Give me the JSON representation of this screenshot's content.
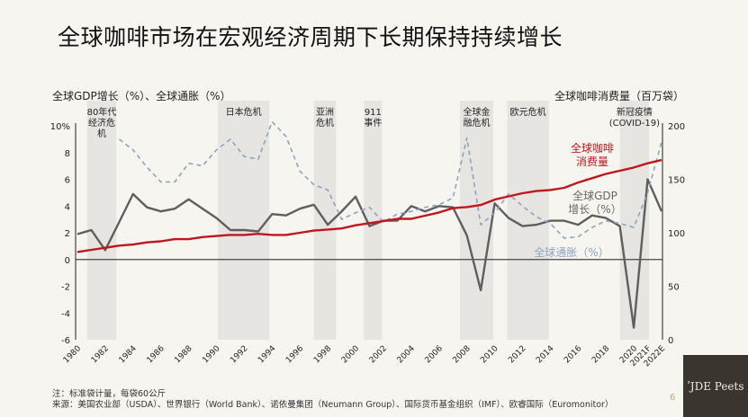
{
  "title": "全球咖啡市场在宏观经济周期下长期保持持续增长",
  "chart_data": {
    "type": "line",
    "title": "全球咖啡市场在宏观经济周期下长期保持持续增长",
    "left_axis_label": "全球GDP增长（%）、全球通胀（%）",
    "right_axis_label": "全球咖啡消费量（百万袋）",
    "left_ylim": [
      -6,
      10
    ],
    "right_ylim": [
      0,
      200
    ],
    "left_ticks": [
      "-6",
      "-4",
      "-2",
      "0",
      "2",
      "4",
      "6",
      "8",
      "10%"
    ],
    "left_tick_values": [
      -6,
      -4,
      -2,
      0,
      2,
      4,
      6,
      8,
      10
    ],
    "right_ticks": [
      "0",
      "50",
      "100",
      "150",
      "200"
    ],
    "right_tick_values": [
      0,
      50,
      100,
      150,
      200
    ],
    "x_ticks": [
      "1980",
      "1982",
      "1984",
      "1986",
      "1988",
      "1990",
      "1992",
      "1994",
      "1996",
      "1998",
      "2000",
      "2002",
      "2004",
      "2006",
      "2008",
      "2010",
      "2012",
      "2014",
      "2016",
      "2018",
      "2020",
      "2021F",
      "2022E"
    ],
    "x_tick_values": [
      1980,
      1982,
      1984,
      1986,
      1988,
      1990,
      1992,
      1994,
      1996,
      1998,
      2000,
      2002,
      2004,
      2006,
      2008,
      2010,
      2012,
      2014,
      2016,
      2018,
      2020,
      2021,
      2022
    ],
    "grid": false,
    "years": [
      1980,
      1981,
      1982,
      1983,
      1984,
      1985,
      1986,
      1987,
      1988,
      1989,
      1990,
      1991,
      1992,
      1993,
      1994,
      1995,
      1996,
      1997,
      1998,
      1999,
      2000,
      2001,
      2002,
      2003,
      2004,
      2005,
      2006,
      2007,
      2008,
      2009,
      2010,
      2011,
      2012,
      2013,
      2014,
      2015,
      2016,
      2017,
      2018,
      2019,
      2020,
      2021,
      2022
    ],
    "series": [
      {
        "name": "全球GDP增长（%）",
        "axis": "left",
        "color": "#5f5f5f",
        "style": "solid",
        "values": [
          1.9,
          2.2,
          0.7,
          2.8,
          4.9,
          3.9,
          3.6,
          3.8,
          4.5,
          3.8,
          3.1,
          2.2,
          2.2,
          2.1,
          3.4,
          3.3,
          3.8,
          4.1,
          2.6,
          3.6,
          4.7,
          2.5,
          2.9,
          2.9,
          4.0,
          3.6,
          4.0,
          3.9,
          1.8,
          -2.3,
          4.2,
          3.1,
          2.5,
          2.6,
          2.9,
          2.9,
          2.6,
          3.3,
          3.1,
          2.5,
          -5.1,
          6.0,
          3.6
        ]
      },
      {
        "name": "全球通胀（%）",
        "axis": "left",
        "color": "#8fa3bd",
        "style": "dashed",
        "values": [
          null,
          null,
          null,
          9.0,
          8.2,
          6.9,
          5.8,
          5.8,
          7.2,
          7.0,
          8.2,
          9.0,
          7.7,
          7.5,
          10.3,
          9.2,
          6.6,
          5.6,
          5.2,
          3.0,
          3.5,
          3.9,
          2.8,
          3.4,
          3.6,
          3.9,
          4.1,
          4.6,
          9.1,
          2.6,
          3.5,
          4.9,
          4.0,
          3.2,
          2.7,
          1.6,
          1.7,
          2.4,
          2.9,
          2.7,
          2.4,
          5.0,
          8.8
        ]
      },
      {
        "name": "全球咖啡消费量",
        "axis": "right",
        "color": "#c0161e",
        "style": "solid",
        "values": [
          82,
          84,
          86,
          88,
          89,
          91,
          92,
          94,
          94,
          96,
          97,
          98,
          98,
          99,
          98,
          98,
          100,
          102,
          103,
          104,
          107,
          109,
          111,
          113,
          113,
          116,
          119,
          123,
          124,
          126,
          131,
          134,
          137,
          139,
          140,
          142,
          147,
          151,
          155,
          158,
          161,
          165,
          168
        ]
      }
    ],
    "series_labels": {
      "coffee": "全球咖啡\n消费量",
      "gdp": "全球GDP\n增长（%）",
      "inflation": "全球通胀（%）"
    },
    "shaded_periods": [
      {
        "label": "80年代\n经济危\n机",
        "start": 1980.7,
        "end": 1982.8
      },
      {
        "label": "日本危机",
        "start": 1990.1,
        "end": 1993.8
      },
      {
        "label": "亚洲\n危机",
        "start": 1997.0,
        "end": 1998.6
      },
      {
        "label": "911\n事件",
        "start": 2000.6,
        "end": 2001.9
      },
      {
        "label": "全球金\n融危机",
        "start": 2007.5,
        "end": 2009.9
      },
      {
        "label": "欧元危机",
        "start": 2010.9,
        "end": 2013.9
      },
      {
        "label": "新冠疫情\n(COVID-19)",
        "start": 2019.0,
        "end": 2021.1
      }
    ]
  },
  "notes": {
    "note": "注：标准袋计量，每袋60公斤",
    "source": "来源：美国农业部（USDA）、世界银行（World Bank）、诺依曼集团（Neumann Group）、国际货币基金组织（IMF）、欧睿国际（Euromonitor）"
  },
  "page_number": "6",
  "logo": "JDE Peet's"
}
